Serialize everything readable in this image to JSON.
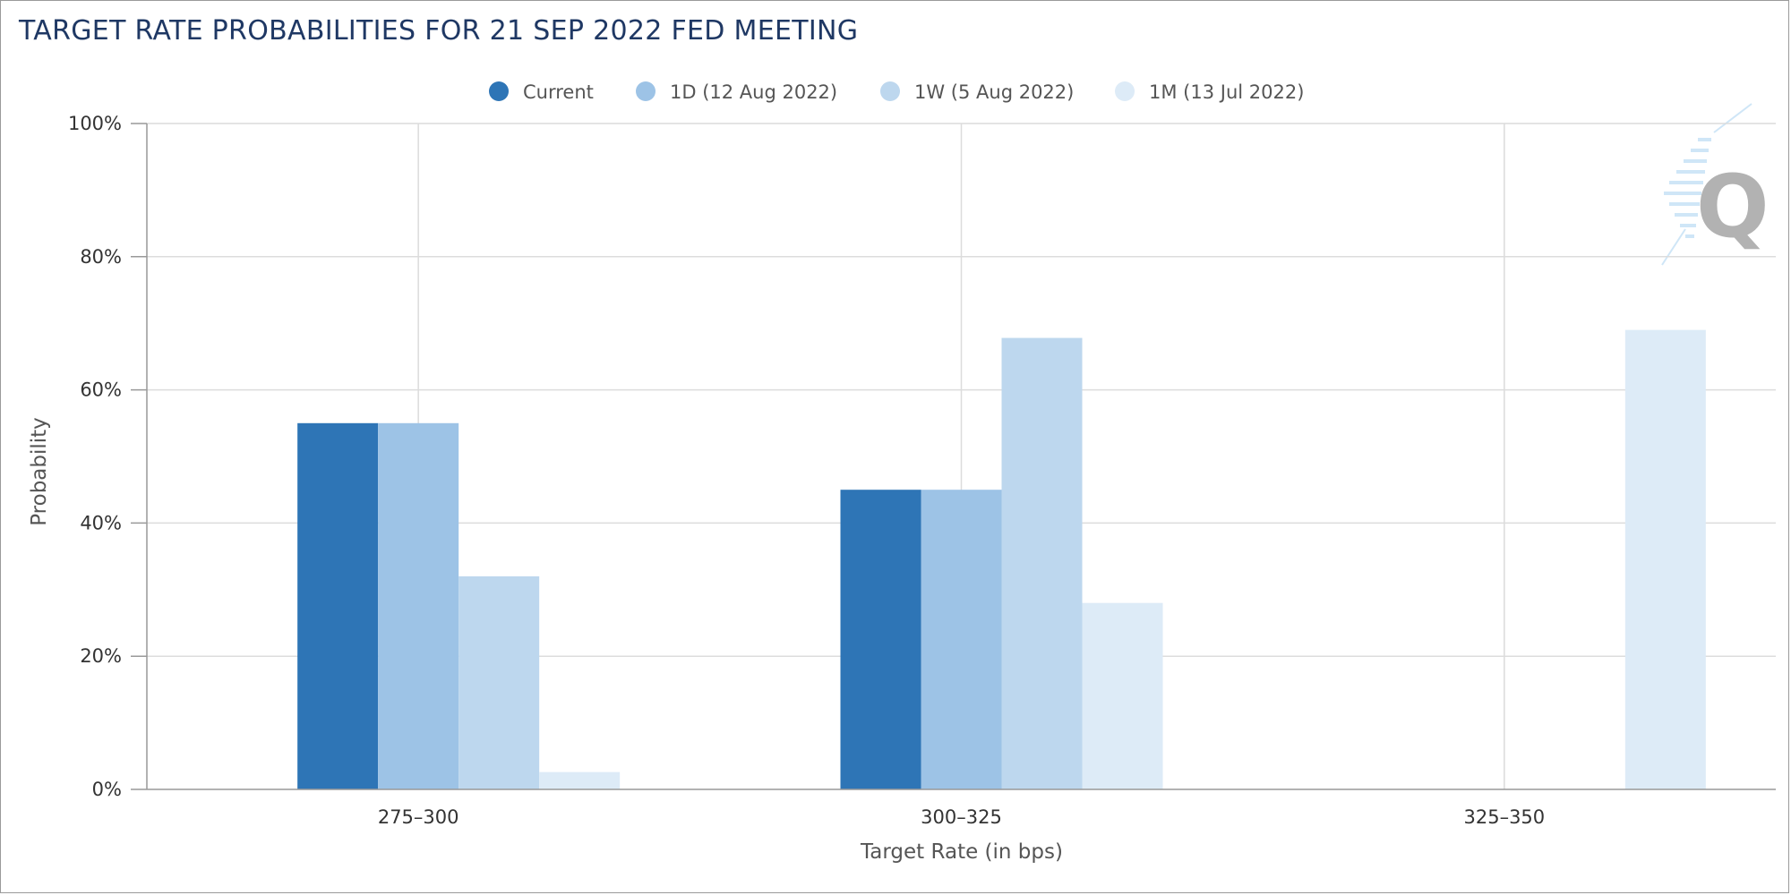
{
  "chart_data": {
    "type": "bar",
    "title": "TARGET RATE PROBABILITIES FOR 21 SEP 2022 FED MEETING",
    "xlabel": "Target Rate (in bps)",
    "ylabel": "Probability",
    "categories": [
      "275-300",
      "300-325",
      "325-350"
    ],
    "ylim": [
      0,
      100
    ],
    "yticks": [
      0,
      20,
      40,
      60,
      80,
      100
    ],
    "ytick_labels": [
      "0%",
      "20%",
      "40%",
      "60%",
      "80%",
      "100%"
    ],
    "grid": true,
    "legend_position": "top-center",
    "series": [
      {
        "name": "Current",
        "values": [
          55.0,
          45.0,
          0
        ],
        "color": "#2e75b6"
      },
      {
        "name": "1D (12 Aug 2022)",
        "values": [
          55.0,
          45.0,
          0
        ],
        "color": "#9dc3e6"
      },
      {
        "name": "1W (5 Aug 2022)",
        "values": [
          32.0,
          67.8,
          0
        ],
        "color": "#bdd7ee"
      },
      {
        "name": "1M (13 Jul 2022)",
        "values": [
          2.6,
          28.0,
          69.0
        ],
        "color": "#ddebf7"
      }
    ]
  },
  "watermark": {
    "letter": "Q",
    "color": "#aaaaaa"
  }
}
